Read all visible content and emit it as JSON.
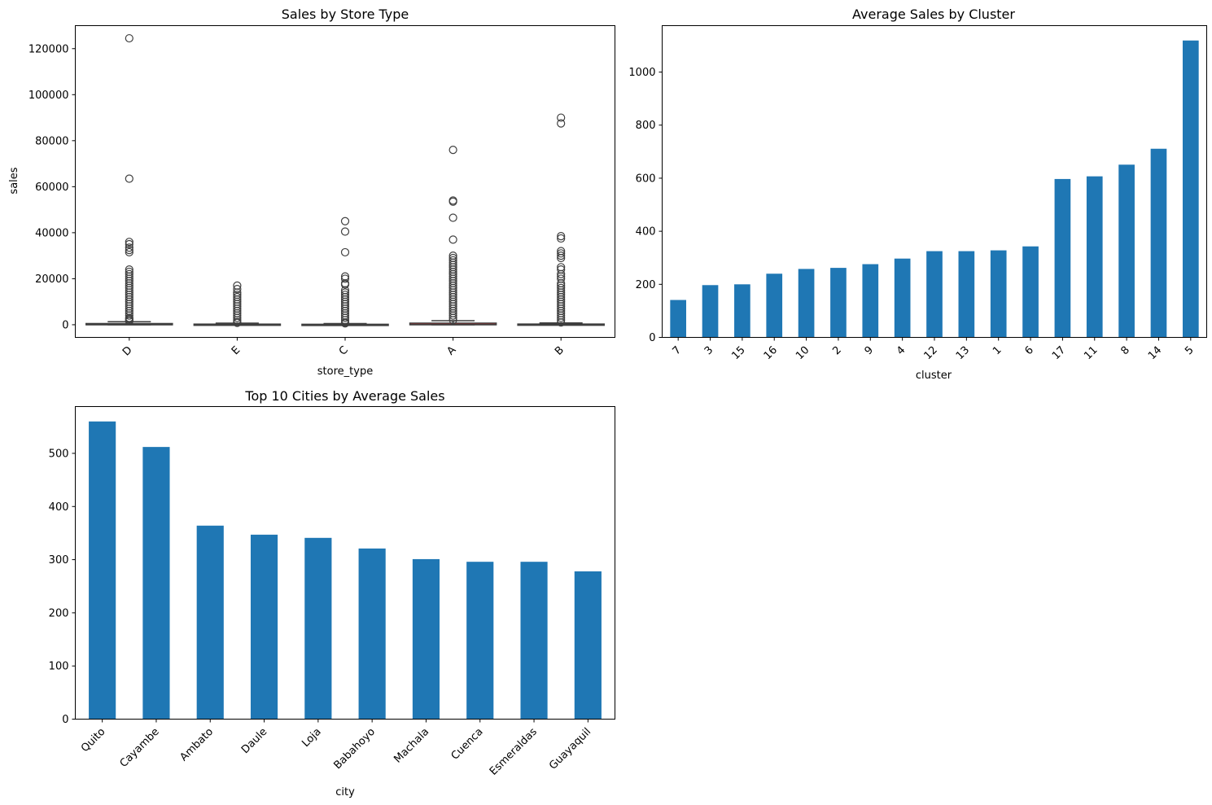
{
  "colors": {
    "bar": "#1f77b4",
    "box_edge": "#3f3f3f",
    "axis": "#000000"
  },
  "chart_data": [
    {
      "type": "box",
      "title": "Sales by Store Type",
      "xlabel": "store_type",
      "ylabel": "sales",
      "ylim": [
        -5500,
        130000
      ],
      "yticks": [
        0,
        20000,
        40000,
        60000,
        80000,
        100000,
        120000
      ],
      "categories": [
        "D",
        "E",
        "C",
        "A",
        "B"
      ],
      "boxes": [
        {
          "q1": 0,
          "median": 10,
          "q3": 520,
          "whisker_low": 0,
          "whisker_high": 1300,
          "fill": "#1f77b4"
        },
        {
          "q1": 0,
          "median": 5,
          "q3": 270,
          "whisker_low": 0,
          "whisker_high": 680,
          "fill": "#ff7f0e"
        },
        {
          "q1": 0,
          "median": 5,
          "q3": 200,
          "whisker_low": 0,
          "whisker_high": 500,
          "fill": "#2ca02c"
        },
        {
          "q1": 0,
          "median": 20,
          "q3": 700,
          "whisker_low": 0,
          "whisker_high": 1750,
          "fill": "#d62728"
        },
        {
          "q1": 0,
          "median": 5,
          "q3": 300,
          "whisker_low": 0,
          "whisker_high": 760,
          "fill": "#9467bd"
        }
      ],
      "outliers": [
        [
          124500,
          63500,
          36000,
          35000,
          33500,
          32500,
          31500,
          24000,
          23000,
          22000,
          21000,
          20000,
          19000,
          18000,
          17000,
          16000,
          15000,
          14000,
          13000,
          12000,
          11000,
          10000,
          9000,
          8000,
          7000,
          6000,
          5000,
          4000,
          3000,
          2500,
          2000,
          1600
        ],
        [
          17000,
          15500,
          14000,
          13000,
          12000,
          11000,
          10000,
          9000,
          8000,
          7000,
          6000,
          5000,
          4000,
          3000,
          2000,
          1200,
          800
        ],
        [
          45000,
          40500,
          31500,
          21000,
          20000,
          18000,
          17500,
          15000,
          14000,
          13000,
          12000,
          11000,
          10000,
          9000,
          8000,
          7000,
          6000,
          5000,
          4000,
          3000,
          2000,
          1000,
          600
        ],
        [
          76000,
          54000,
          53500,
          46500,
          37000,
          30000,
          29000,
          28000,
          27000,
          26000,
          25000,
          24000,
          23000,
          22000,
          21000,
          20000,
          19000,
          18000,
          17000,
          16000,
          15000,
          14000,
          13000,
          12000,
          11000,
          10000,
          9000,
          8000,
          7000,
          6000,
          5000,
          4000,
          3000,
          2000
        ],
        [
          90000,
          87500,
          38500,
          37500,
          32000,
          31000,
          30000,
          29000,
          25000,
          24000,
          22000,
          21000,
          20000,
          18000,
          17000,
          16000,
          15000,
          14000,
          13000,
          12000,
          11000,
          10000,
          9000,
          8000,
          7000,
          6000,
          5000,
          4000,
          3000,
          2000,
          1000
        ]
      ]
    },
    {
      "type": "bar",
      "title": "Average Sales by Cluster",
      "xlabel": "cluster",
      "ylabel": "",
      "ylim": [
        0,
        1175
      ],
      "yticks": [
        0,
        200,
        400,
        600,
        800,
        1000
      ],
      "categories": [
        "7",
        "3",
        "15",
        "16",
        "10",
        "2",
        "9",
        "4",
        "12",
        "13",
        "1",
        "6",
        "17",
        "11",
        "8",
        "14",
        "5"
      ],
      "values": [
        141,
        197,
        200,
        240,
        258,
        262,
        276,
        297,
        325,
        325,
        328,
        343,
        597,
        607,
        651,
        711,
        1119
      ]
    },
    {
      "type": "bar",
      "title": "Top 10 Cities by Average Sales",
      "xlabel": "city",
      "ylabel": "",
      "ylim": [
        0,
        588
      ],
      "yticks": [
        0,
        100,
        200,
        300,
        400,
        500
      ],
      "categories": [
        "Quito",
        "Cayambe",
        "Ambato",
        "Daule",
        "Loja",
        "Babahoyo",
        "Machala",
        "Cuenca",
        "Esmeraldas",
        "Guayaquil"
      ],
      "values": [
        560,
        512,
        364,
        347,
        341,
        321,
        301,
        296,
        296,
        278
      ]
    }
  ]
}
